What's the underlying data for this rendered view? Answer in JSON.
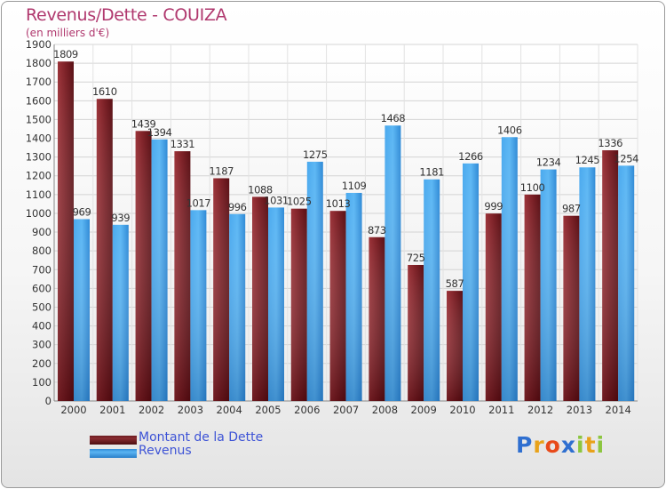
{
  "header": {
    "title": "Revenus/Dette - COUIZA",
    "subtitle": "(en milliers d'€)"
  },
  "chart_data": {
    "type": "bar",
    "categories": [
      "2000",
      "2001",
      "2002",
      "2003",
      "2004",
      "2005",
      "2006",
      "2007",
      "2008",
      "2009",
      "2010",
      "2011",
      "2012",
      "2013",
      "2014"
    ],
    "series": [
      {
        "name": "Montant de la Dette",
        "color": "#7b1f25",
        "values": [
          1809,
          1610,
          1439,
          1331,
          1187,
          1088,
          1025,
          1013,
          873,
          725,
          587,
          999,
          1100,
          987,
          1336
        ]
      },
      {
        "name": "Revenus",
        "color": "#3a9ee6",
        "values": [
          969,
          939,
          1394,
          1017,
          996,
          1031,
          1275,
          1109,
          1468,
          1181,
          1266,
          1406,
          1234,
          1245,
          1254
        ]
      }
    ],
    "ylim": [
      0,
      1900
    ],
    "yticks": [
      0,
      100,
      200,
      300,
      400,
      500,
      600,
      700,
      800,
      900,
      1000,
      1100,
      1200,
      1300,
      1400,
      1500,
      1600,
      1700,
      1800,
      1900
    ],
    "grid": true,
    "legend_position": "bottom-left"
  },
  "legend": {
    "debt_label": "Montant de la Dette",
    "revenue_label": "Revenus"
  },
  "logo": {
    "letters": [
      "P",
      "r",
      "o",
      "x",
      "i",
      "t",
      "i"
    ],
    "colors": [
      "#2f6fd0",
      "#e8a21a",
      "#e84a1a",
      "#2f6fd0",
      "#8cc63f",
      "#e8a21a",
      "#8cc63f"
    ]
  }
}
